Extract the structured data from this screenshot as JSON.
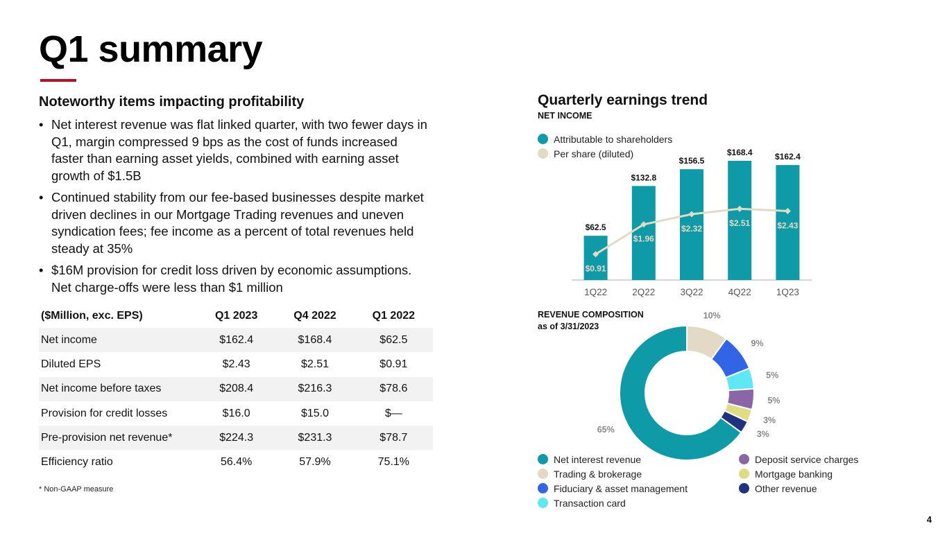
{
  "title": "Q1 summary",
  "left": {
    "heading": "Noteworthy items impacting profitability",
    "bullet_char": "•",
    "bullets": [
      "Net interest revenue was flat linked quarter, with two fewer days in Q1, margin compressed 9 bps as the cost of funds increased faster than earning asset yields, combined with earning asset growth of $1.5B",
      "Continued stability from our fee-based businesses despite market driven declines in our Mortgage Trading revenues and uneven syndication fees; fee income as a percent of total revenues held steady at 35%",
      "$16M provision for credit loss driven by economic assumptions. Net charge-offs were less than $1 million"
    ]
  },
  "table": {
    "headers": [
      "($Million, exc. EPS)",
      "Q1 2023",
      "Q4 2022",
      "Q1 2022"
    ],
    "rows": [
      [
        "Net income",
        "$162.4",
        "$168.4",
        "$62.5"
      ],
      [
        "Diluted EPS",
        "$2.43",
        "$2.51",
        "$0.91"
      ],
      [
        "Net income before taxes",
        "$208.4",
        "$216.3",
        "$78.6"
      ],
      [
        "Provision for credit losses",
        "$16.0",
        "$15.0",
        "$—"
      ],
      [
        "Pre-provision net revenue*",
        "$224.3",
        "$231.3",
        "$78.7"
      ],
      [
        "Efficiency ratio",
        "56.4%",
        "57.9%",
        "75.1%"
      ]
    ]
  },
  "footnote": "*   Non-GAAP measure",
  "page_number": "4",
  "right": {
    "heading": "Quarterly earnings trend",
    "subheading": "NET INCOME",
    "earnings_legend": [
      {
        "label": "Attributable to shareholders",
        "color": "#0e9aa7"
      },
      {
        "label": "Per share (diluted)",
        "color": "#e3dac5"
      }
    ],
    "revenue_title_line1": "REVENUE COMPOSITION",
    "revenue_title_line2": "as of 3/31/2023",
    "revenue_legend_left": [
      {
        "label": "Net interest revenue",
        "color": "#0e9aa7"
      },
      {
        "label": "Trading & brokerage",
        "color": "#e3dac5"
      },
      {
        "label": "Fiduciary & asset management",
        "color": "#3264e6"
      },
      {
        "label": "Transaction card",
        "color": "#5ee8f5"
      }
    ],
    "revenue_legend_right": [
      {
        "label": "Deposit service charges",
        "color": "#8a65a8"
      },
      {
        "label": "Mortgage banking",
        "color": "#dedd84"
      },
      {
        "label": "Other revenue",
        "color": "#1f3282"
      }
    ]
  },
  "chart_data": [
    {
      "type": "bar",
      "title": "NET INCOME",
      "categories": [
        "1Q22",
        "2Q22",
        "3Q22",
        "4Q22",
        "1Q23"
      ],
      "series": [
        {
          "name": "Attributable to shareholders",
          "values": [
            62.5,
            132.8,
            156.5,
            168.4,
            162.4
          ],
          "labels": [
            "$62.5",
            "$132.8",
            "$156.5",
            "$168.4",
            "$162.4"
          ],
          "color": "#0e9aa7"
        },
        {
          "name": "Per share (diluted)",
          "type": "line",
          "values": [
            0.91,
            1.96,
            2.32,
            2.51,
            2.43
          ],
          "labels": [
            "$0.91",
            "$1.96",
            "$2.32",
            "$2.51",
            "$2.43"
          ],
          "color": "#e3dac5"
        }
      ],
      "ylim": [
        0,
        168.4
      ],
      "line_ylim": [
        0,
        4.2
      ]
    },
    {
      "type": "pie",
      "donut": true,
      "title": "REVENUE COMPOSITION as of 3/31/2023",
      "slices": [
        {
          "name": "Net interest revenue",
          "value": 65,
          "label": "65%",
          "color": "#0e9aa7"
        },
        {
          "name": "Trading & brokerage",
          "value": 10,
          "label": "10%",
          "color": "#e3dac5"
        },
        {
          "name": "Fiduciary & asset management",
          "value": 9,
          "label": "9%",
          "color": "#3264e6"
        },
        {
          "name": "Transaction card",
          "value": 5,
          "label": "5%",
          "color": "#5ee8f5"
        },
        {
          "name": "Deposit service charges",
          "value": 5,
          "label": "5%",
          "color": "#8a65a8"
        },
        {
          "name": "Mortgage banking",
          "value": 3,
          "label": "3%",
          "color": "#dedd84"
        },
        {
          "name": "Other revenue",
          "value": 3,
          "label": "3%",
          "color": "#1f3282"
        }
      ]
    }
  ]
}
